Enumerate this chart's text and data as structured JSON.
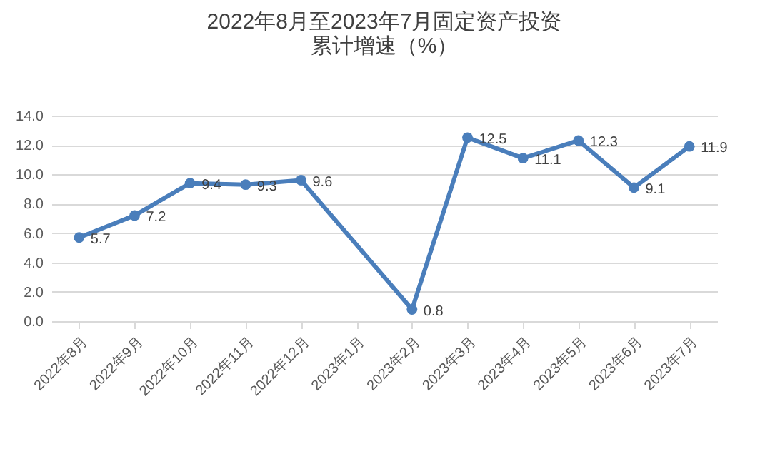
{
  "chart_data": {
    "type": "line",
    "title": "2022年8月至2023年7月固定资产投资",
    "subtitle": "累计增速（%）",
    "categories": [
      "2022年8月",
      "2022年9月",
      "2022年10月",
      "2022年11月",
      "2022年12月",
      "2023年1月",
      "2023年2月",
      "2023年3月",
      "2023年4月",
      "2023年5月",
      "2023年6月",
      "2023年7月"
    ],
    "series": [
      {
        "color": "#4a7ebb",
        "values": [
          5.7,
          7.2,
          9.4,
          9.3,
          9.6,
          null,
          0.8,
          12.5,
          11.1,
          12.3,
          9.1,
          11.9
        ]
      }
    ],
    "ylim": [
      0,
      14
    ],
    "yticks": [
      {
        "value": 0,
        "label": "0.0"
      },
      {
        "value": 2,
        "label": "2.0"
      },
      {
        "value": 4,
        "label": "4.0"
      },
      {
        "value": 6,
        "label": "6.0"
      },
      {
        "value": 8,
        "label": "8.0"
      },
      {
        "value": 10,
        "label": "10.0"
      },
      {
        "value": 12,
        "label": "12.0"
      },
      {
        "value": 14,
        "label": "14.0"
      }
    ],
    "grid": "y",
    "marker": "circle",
    "line_style": "solid",
    "data_labels": true
  }
}
